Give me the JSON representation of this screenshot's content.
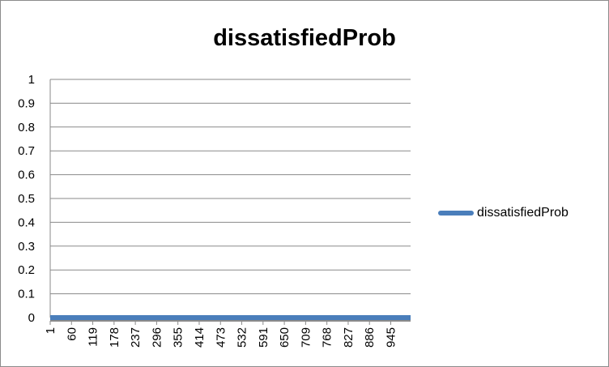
{
  "chart_data": {
    "type": "line",
    "title": "dissatisfiedProb",
    "xlabel": "",
    "ylabel": "",
    "ylim": [
      0,
      1
    ],
    "yticks": [
      "1",
      "0.9",
      "0.8",
      "0.7",
      "0.6",
      "0.5",
      "0.4",
      "0.3",
      "0.2",
      "0.1",
      "0"
    ],
    "categories": [
      "1",
      "60",
      "119",
      "178",
      "237",
      "296",
      "355",
      "414",
      "473",
      "532",
      "591",
      "650",
      "709",
      "768",
      "827",
      "886",
      "945"
    ],
    "x_range": [
      1,
      1000
    ],
    "grid": true,
    "legend_position": "right",
    "series": [
      {
        "name": "dissatisfiedProb",
        "color": "#4a7ebb",
        "x": [
          1,
          60,
          119,
          178,
          237,
          296,
          355,
          414,
          473,
          532,
          591,
          650,
          709,
          768,
          827,
          886,
          945,
          1000
        ],
        "values": [
          0,
          0,
          0,
          0,
          0,
          0,
          0,
          0,
          0,
          0,
          0,
          0,
          0,
          0,
          0,
          0,
          0,
          0
        ]
      }
    ]
  }
}
